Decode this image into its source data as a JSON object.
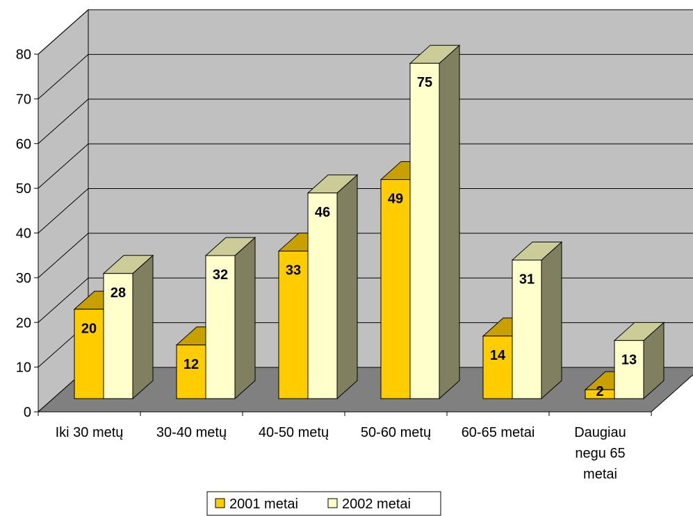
{
  "chart_data": {
    "type": "bar",
    "style": "3d-clustered-column",
    "categories": [
      "Iki 30 metų",
      "30-40 metų",
      "40-50 metų",
      "50-60 metų",
      "60-65 metai",
      "Daugiau negu 65 metai"
    ],
    "series": [
      {
        "name": "2001 metai",
        "values": [
          20,
          12,
          33,
          49,
          14,
          2
        ],
        "color": "#FFCC00",
        "top_color": "#C8A000",
        "side_color": "#A08000"
      },
      {
        "name": "2002 metai",
        "values": [
          28,
          32,
          46,
          75,
          31,
          13
        ],
        "color": "#FFFFCC",
        "top_color": "#CCCC99",
        "side_color": "#808060"
      }
    ],
    "ylim": [
      0,
      80
    ],
    "yticks": [
      0,
      10,
      20,
      30,
      40,
      50,
      60,
      70,
      80
    ],
    "grid": true,
    "legend_position": "bottom",
    "wall_color": "#C0C0C0",
    "floor_color": "#808080",
    "data_labels": true
  }
}
